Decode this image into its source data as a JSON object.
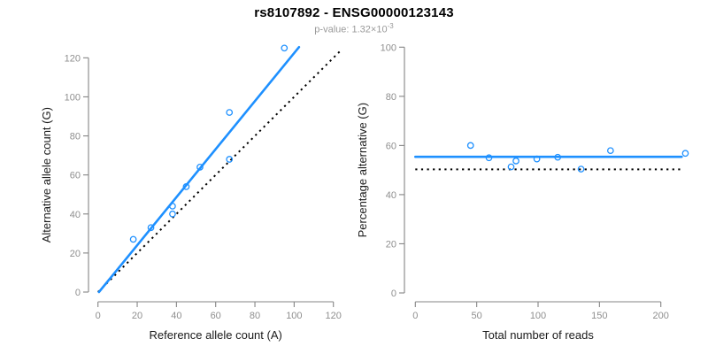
{
  "header": {
    "title": "rs8107892 - ENSG00000123143",
    "subtitle_base": "p-value: 1.32×10",
    "subtitle_exponent": "-3"
  },
  "colors": {
    "accent_blue": "#1E90FF",
    "reference_line": "#000000",
    "axis_gray": "#858585",
    "tick_text_gray": "#8f8f8f",
    "label_text": "#1a1a1a",
    "subtitle_gray": "#9a9a9a",
    "background": "#ffffff"
  },
  "chart_data": [
    {
      "id": "allele-counts",
      "type": "scatter",
      "title": "",
      "xlabel": "Reference allele count (A)",
      "ylabel": "Alternative allele count (G)",
      "xlim": [
        0,
        124
      ],
      "ylim": [
        0,
        126
      ],
      "xticks": [
        0,
        20,
        40,
        60,
        80,
        100,
        120
      ],
      "yticks": [
        0,
        20,
        40,
        60,
        80,
        100,
        120
      ],
      "grid": false,
      "legend": null,
      "marker": "open-circle",
      "points": [
        [
          18,
          27
        ],
        [
          27,
          33
        ],
        [
          38,
          40
        ],
        [
          38,
          44
        ],
        [
          45,
          54
        ],
        [
          52,
          64
        ],
        [
          67,
          68
        ],
        [
          67,
          92
        ],
        [
          95,
          125
        ]
      ],
      "lines": [
        {
          "name": "fit-line",
          "style": "solid",
          "color_key": "accent_blue",
          "x1": 0.5,
          "y1": 0,
          "x2": 102.5,
          "y2": 125.5
        },
        {
          "name": "identity-line",
          "style": "dotted",
          "color_key": "reference_line",
          "x1": 0,
          "y1": 0,
          "x2": 124,
          "y2": 124
        }
      ]
    },
    {
      "id": "percentage-alternative",
      "type": "scatter",
      "title": "",
      "xlabel": "Total number of reads",
      "ylabel": "Percentage alternative (G)",
      "xlim": [
        0,
        220
      ],
      "ylim": [
        0,
        100
      ],
      "xticks": [
        0,
        50,
        100,
        150,
        200
      ],
      "yticks": [
        0,
        20,
        40,
        60,
        80,
        100
      ],
      "grid": false,
      "legend": null,
      "marker": "open-circle",
      "points": [
        [
          45,
          60
        ],
        [
          60,
          55
        ],
        [
          78,
          51.3
        ],
        [
          82,
          53.7
        ],
        [
          99,
          54.5
        ],
        [
          116,
          55.2
        ],
        [
          135,
          50.4
        ],
        [
          159,
          57.9
        ],
        [
          220,
          56.8
        ]
      ],
      "lines": [
        {
          "name": "fitted-percentage-line",
          "style": "solid",
          "color_key": "accent_blue",
          "x1": 0,
          "y1": 55.4,
          "x2": 217,
          "y2": 55.4
        },
        {
          "name": "null-50pct-line",
          "style": "dotted",
          "color_key": "reference_line",
          "x1": 0,
          "y1": 50.3,
          "x2": 217,
          "y2": 50.3
        }
      ]
    }
  ]
}
